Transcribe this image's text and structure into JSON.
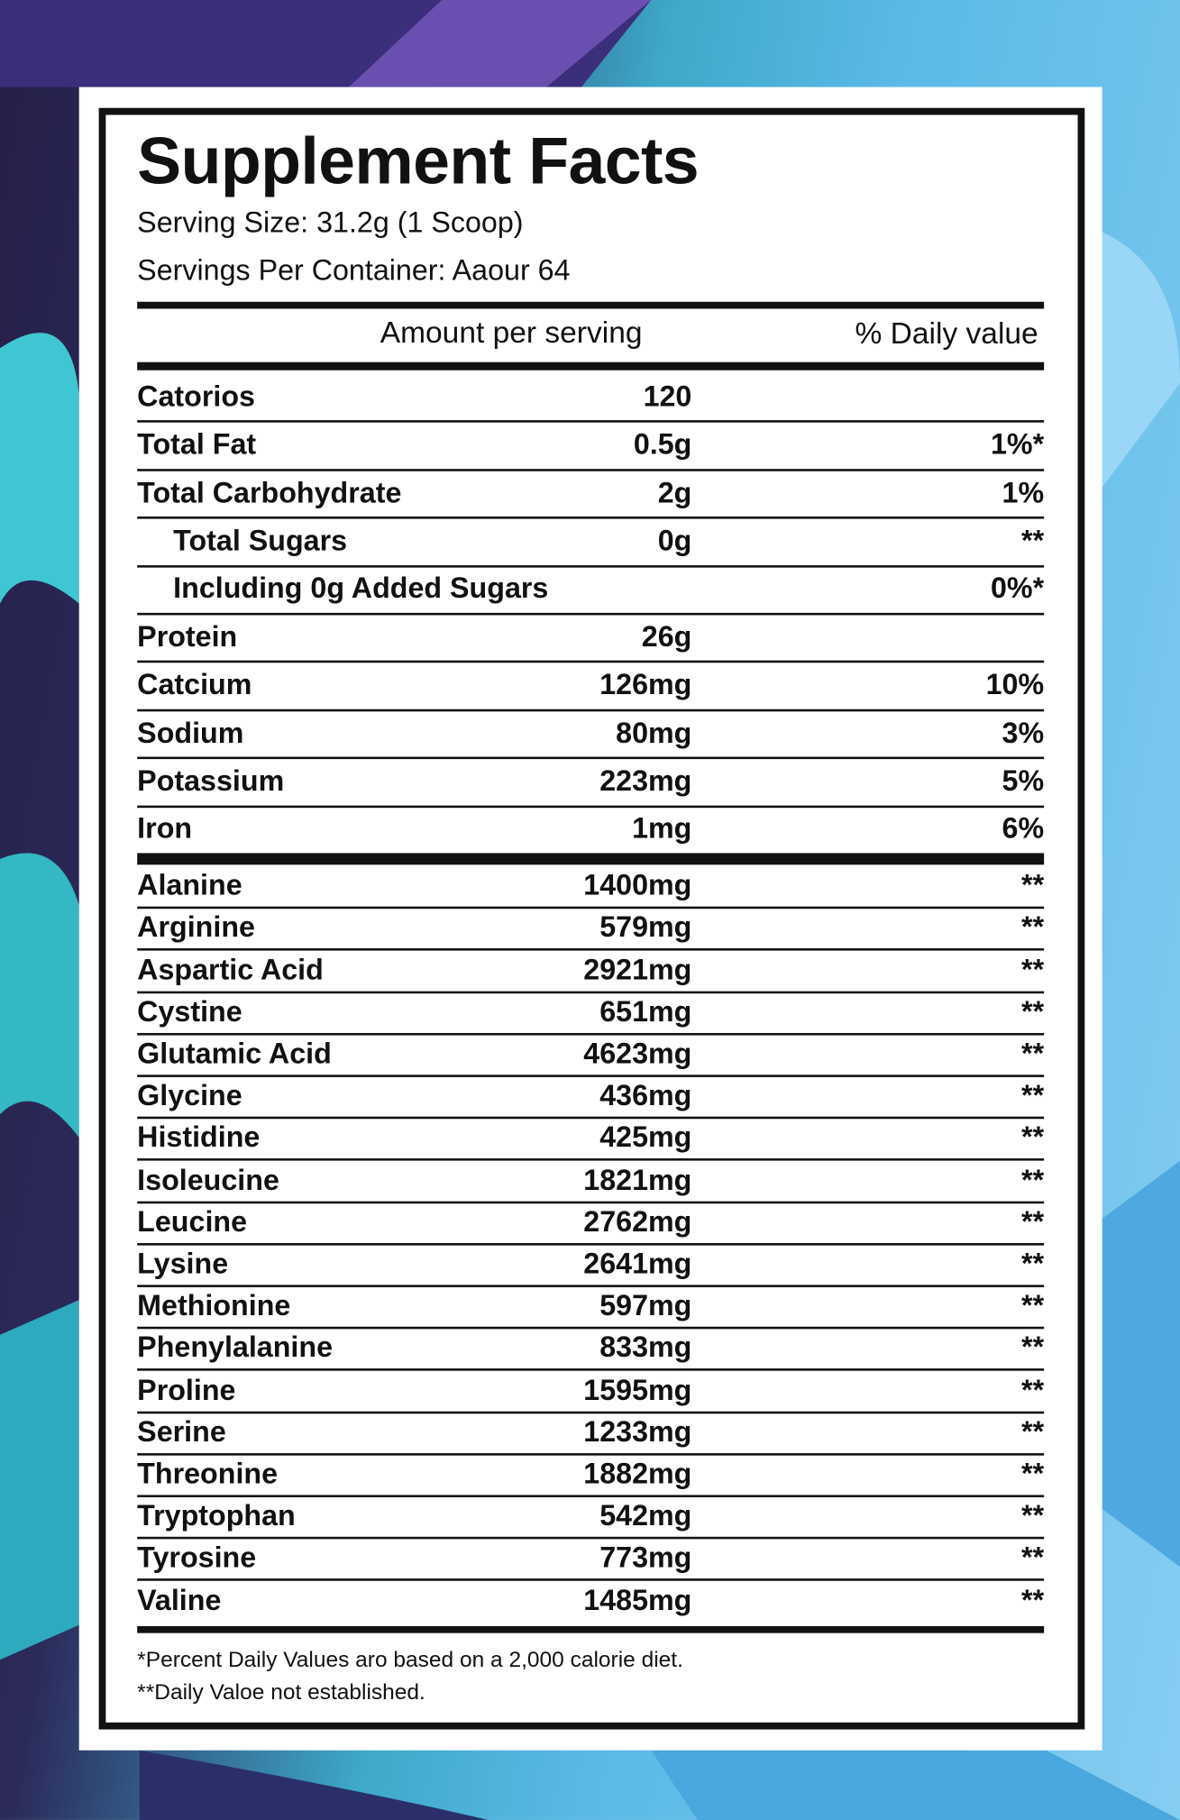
{
  "header": {
    "title": "Supplement Facts",
    "serving_size": "Serving Size: 31.2g (1 Scoop)",
    "servings_per_container": "Servings Per Container: Aaour 64"
  },
  "table": {
    "columns": [
      "Amount per serving",
      "% Daily value"
    ],
    "nutrients": [
      {
        "name": "Catorios",
        "amount": "120"
      },
      {
        "name": "Total Fat",
        "amount": "0.5g",
        "dv": "1%*"
      },
      {
        "name": "Total Carbohydrate",
        "amount": "2g",
        "dv": "1%",
        "sub_rows": [
          {
            "name": "Total Sugars",
            "amount": "0g",
            "dv": "**"
          },
          {
            "name": "Including 0g Added Sugars",
            "dv": "0%*"
          }
        ]
      },
      {
        "name": "Protein",
        "amount": "26g"
      },
      {
        "name": "Catcium",
        "amount": "126mg",
        "dv": "10%"
      },
      {
        "name": "Sodium",
        "amount": "80mg",
        "dv": "3%"
      },
      {
        "name": "Potassium",
        "amount": "223mg",
        "dv": "5%"
      },
      {
        "name": "Iron",
        "amount": "1mg",
        "dv": "6%"
      }
    ],
    "amino_acids": [
      {
        "name": "Alanine",
        "amount": "1400mg",
        "dv": "**"
      },
      {
        "name": "Arginine",
        "amount": "579mg",
        "dv": "**"
      },
      {
        "name": "Aspartic Acid",
        "amount": "2921mg",
        "dv": "**"
      },
      {
        "name": "Cystine",
        "amount": "651mg",
        "dv": "**"
      },
      {
        "name": "Glutamic Acid",
        "amount": "4623mg",
        "dv": "**"
      },
      {
        "name": "Glycine",
        "amount": "436mg",
        "dv": "**"
      },
      {
        "name": "Histidine",
        "amount": "425mg",
        "dv": "**"
      },
      {
        "name": "Isoleucine",
        "amount": "1821mg",
        "dv": "**"
      },
      {
        "name": "Leucine",
        "amount": "2762mg",
        "dv": "**"
      },
      {
        "name": "Lysine",
        "amount": "2641mg",
        "dv": "**"
      },
      {
        "name": "Methionine",
        "amount": "597mg",
        "dv": "**"
      },
      {
        "name": "Phenylalanine",
        "amount": "833mg",
        "dv": "**"
      },
      {
        "name": "Proline",
        "amount": "1595mg",
        "dv": "**"
      },
      {
        "name": "Serine",
        "amount": "1233mg",
        "dv": "**"
      },
      {
        "name": "Threonine",
        "amount": "1882mg",
        "dv": "**"
      },
      {
        "name": "Tryptophan",
        "amount": "542mg",
        "dv": "**"
      },
      {
        "name": "Tyrosine",
        "amount": "773mg",
        "dv": "**"
      },
      {
        "name": "Valine",
        "amount": "1485mg",
        "dv": "**"
      }
    ]
  },
  "footnotes": [
    "*Percent Daily Values aro based on a 2,000 calorie diet.",
    "**Daily Valoe not established."
  ]
}
